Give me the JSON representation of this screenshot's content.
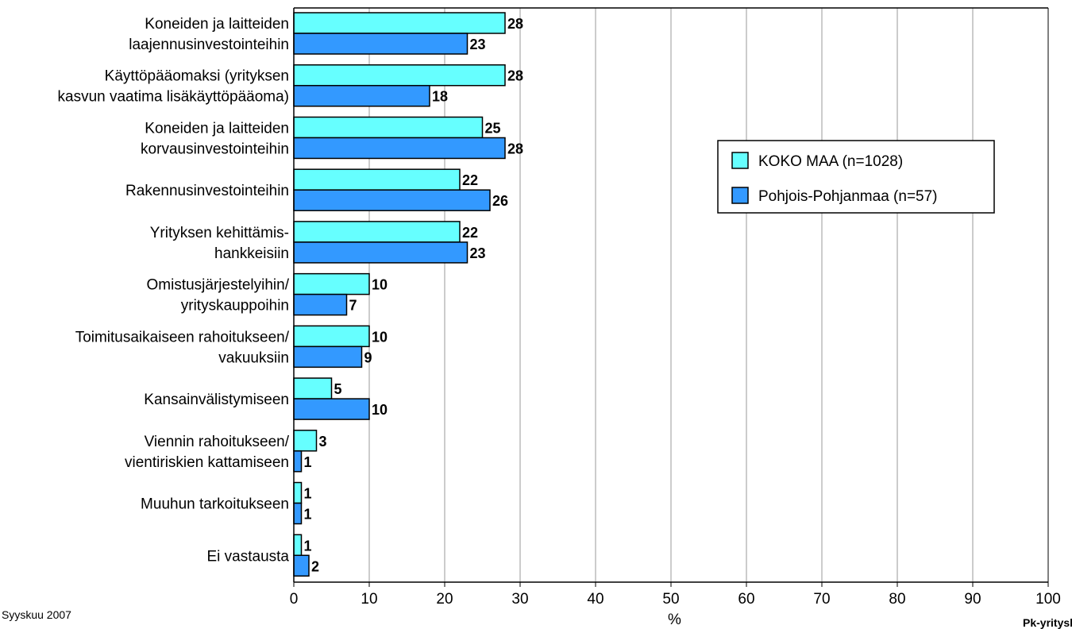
{
  "chart_data": {
    "type": "bar",
    "orientation": "horizontal",
    "categories": [
      [
        "Koneiden ja laitteiden",
        "laajennusinvestointeihin"
      ],
      [
        "Käyttöpääomaksi (yrityksen",
        "kasvun vaatima lisäkäyttöpääoma)"
      ],
      [
        "Koneiden ja laitteiden",
        "korvausinvestointeihin"
      ],
      [
        "Rakennusinvestointeihin"
      ],
      [
        "Yrityksen kehittämis-",
        "hankkeisiin"
      ],
      [
        "Omistusjärjestelyihin/",
        "yrityskauppoihin"
      ],
      [
        "Toimitusaikaiseen rahoitukseen/",
        "vakuuksiin"
      ],
      [
        "Kansainvälistymiseen"
      ],
      [
        "Viennin rahoitukseen/",
        "vientiriskien kattamiseen"
      ],
      [
        "Muuhun tarkoitukseen"
      ],
      [
        "Ei vastausta"
      ]
    ],
    "series": [
      {
        "name": "KOKO MAA (n=1028)",
        "color": "#66FFFF",
        "values": [
          28,
          28,
          25,
          22,
          22,
          10,
          10,
          5,
          3,
          1,
          1
        ]
      },
      {
        "name": "Pohjois-Pohjanmaa (n=57)",
        "color": "#3399FF",
        "values": [
          23,
          18,
          28,
          26,
          23,
          7,
          9,
          10,
          1,
          1,
          2
        ]
      }
    ],
    "xlabel": "%",
    "xlim": [
      0,
      100
    ],
    "xticks": [
      0,
      10,
      20,
      30,
      40,
      50,
      60,
      70,
      80,
      90,
      100
    ],
    "grid": true,
    "legend_position": "upper-right"
  },
  "footer": {
    "date": "Syyskuu 2007",
    "source": "Pk-yritysbarometri"
  }
}
